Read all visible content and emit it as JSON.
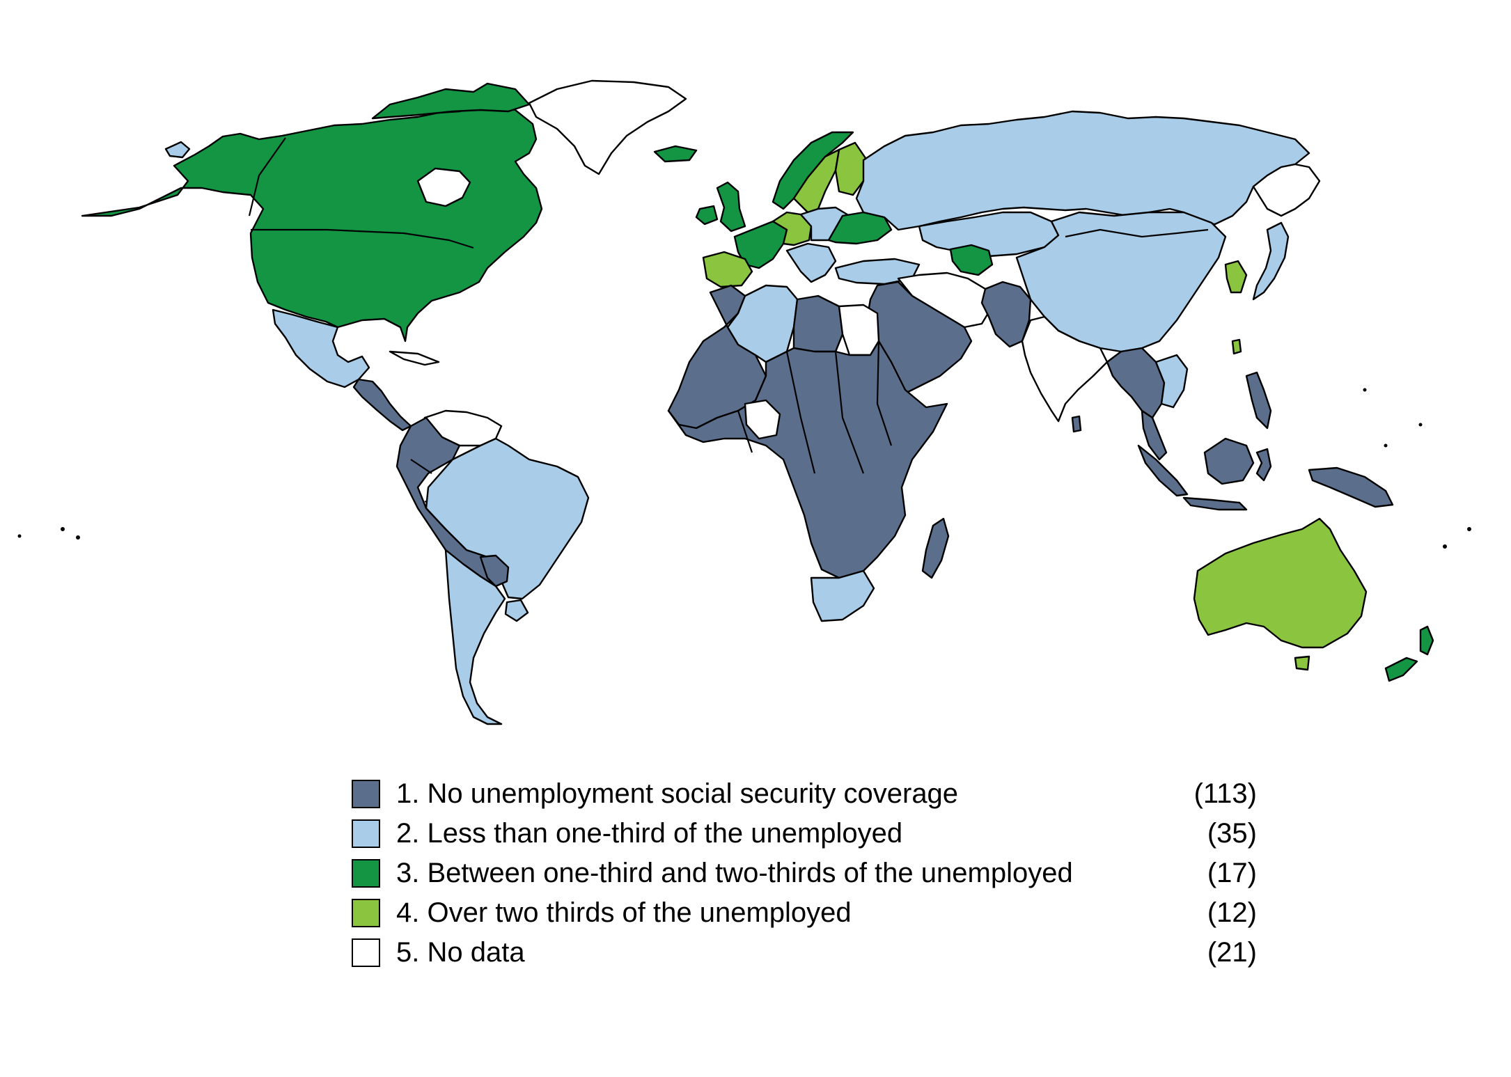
{
  "colors": {
    "none": "#5b6f8c",
    "less_third": "#a9cde8",
    "third_two_thirds": "#139544",
    "over_two_thirds": "#8bc43f",
    "no_data": "#ffffff"
  },
  "legend": [
    {
      "key": "none",
      "label": "1. No unemployment social security coverage",
      "count": "(113)"
    },
    {
      "key": "less_third",
      "label": "2. Less than one-third of the unemployed",
      "count": "(35)"
    },
    {
      "key": "third_two_thirds",
      "label": "3. Between one-third and two-thirds of the unemployed",
      "count": "(17)"
    },
    {
      "key": "over_two_thirds",
      "label": "4. Over two thirds of the unemployed",
      "count": "(12)"
    },
    {
      "key": "no_data",
      "label": "5. No data",
      "count": "(21)"
    }
  ],
  "regions": [
    {
      "name": "north-america",
      "category": "third_two_thirds"
    },
    {
      "name": "greenland",
      "category": "no_data"
    },
    {
      "name": "alaska-tip",
      "category": "less_third"
    },
    {
      "name": "mexico",
      "category": "less_third"
    },
    {
      "name": "central-america",
      "category": "none"
    },
    {
      "name": "cuba",
      "category": "no_data"
    },
    {
      "name": "venezuela",
      "category": "no_data"
    },
    {
      "name": "andean-countries",
      "category": "none"
    },
    {
      "name": "brazil",
      "category": "less_third"
    },
    {
      "name": "southern-cone",
      "category": "less_third"
    },
    {
      "name": "paraguay",
      "category": "none"
    },
    {
      "name": "uruguay",
      "category": "less_third"
    },
    {
      "name": "iceland",
      "category": "third_two_thirds"
    },
    {
      "name": "uk-ireland",
      "category": "third_two_thirds"
    },
    {
      "name": "scandinavia",
      "category": "third_two_thirds"
    },
    {
      "name": "finland",
      "category": "over_two_thirds"
    },
    {
      "name": "sweden-south",
      "category": "over_two_thirds"
    },
    {
      "name": "western-europe",
      "category": "third_two_thirds"
    },
    {
      "name": "germany",
      "category": "over_two_thirds"
    },
    {
      "name": "central-europe",
      "category": "less_third"
    },
    {
      "name": "ukraine-region",
      "category": "third_two_thirds"
    },
    {
      "name": "spain",
      "category": "over_two_thirds"
    },
    {
      "name": "russia",
      "category": "less_third"
    },
    {
      "name": "north-east-siberia",
      "category": "no_data"
    },
    {
      "name": "kazakhstan-central-asia",
      "category": "less_third"
    },
    {
      "name": "turkmenistan",
      "category": "third_two_thirds"
    },
    {
      "name": "turkey",
      "category": "less_third"
    },
    {
      "name": "balkans",
      "category": "less_third"
    },
    {
      "name": "china-mongolia",
      "category": "less_third"
    },
    {
      "name": "korea",
      "category": "over_two_thirds"
    },
    {
      "name": "japan",
      "category": "less_third"
    },
    {
      "name": "iran-caucasus",
      "category": "no_data"
    },
    {
      "name": "middle-east",
      "category": "none"
    },
    {
      "name": "pakistan-afghanistan",
      "category": "none"
    },
    {
      "name": "india",
      "category": "no_data"
    },
    {
      "name": "sri-lanka",
      "category": "none"
    },
    {
      "name": "southeast-asia",
      "category": "none"
    },
    {
      "name": "vietnam",
      "category": "less_third"
    },
    {
      "name": "malaysia-peninsula",
      "category": "none"
    },
    {
      "name": "indonesia",
      "category": "none"
    },
    {
      "name": "philippines",
      "category": "none"
    },
    {
      "name": "taiwan",
      "category": "over_two_thirds"
    },
    {
      "name": "papua",
      "category": "none"
    },
    {
      "name": "north-africa-west",
      "category": "none"
    },
    {
      "name": "algeria",
      "category": "less_third"
    },
    {
      "name": "libya",
      "category": "none"
    },
    {
      "name": "egypt",
      "category": "no_data"
    },
    {
      "name": "sub-saharan-africa",
      "category": "none"
    },
    {
      "name": "west-africa-gap",
      "category": "no_data"
    },
    {
      "name": "south-africa",
      "category": "less_third"
    },
    {
      "name": "madagascar",
      "category": "none"
    },
    {
      "name": "australia",
      "category": "over_two_thirds"
    },
    {
      "name": "tasmania",
      "category": "over_two_thirds"
    },
    {
      "name": "new-zealand",
      "category": "third_two_thirds"
    }
  ]
}
